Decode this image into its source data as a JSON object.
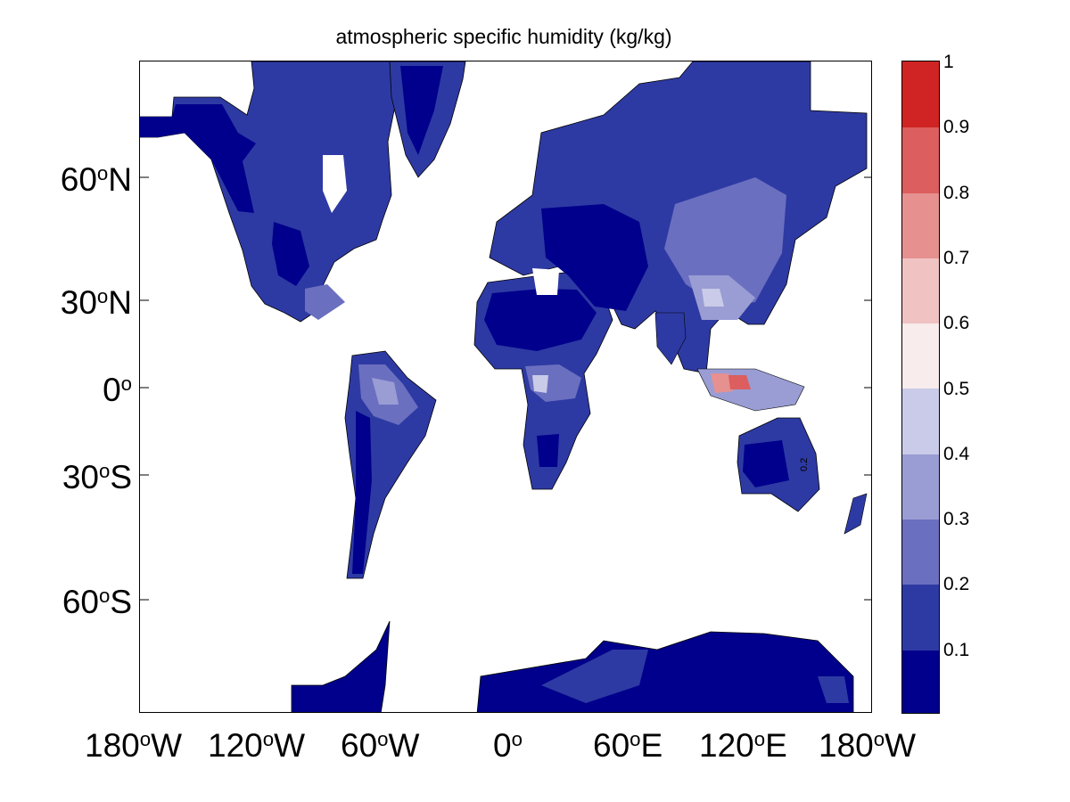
{
  "title": "atmospheric specific humidity (kg/kg)",
  "map": {
    "projection": "mercator",
    "extent": {
      "lon": [
        -180,
        180
      ],
      "lat": [
        -80,
        80
      ]
    },
    "land_color_default": "#2e3aa3",
    "ocean_color": "#ffffff",
    "missing_color": "#ffffff",
    "coastline_color": "#000000",
    "contour_label": "0.2"
  },
  "axes": {
    "y_ticks": [
      {
        "lat": 60,
        "num": "60",
        "hem": "N"
      },
      {
        "lat": 30,
        "num": "30",
        "hem": "N"
      },
      {
        "lat": 0,
        "num": "0",
        "hem": ""
      },
      {
        "lat": -30,
        "num": "30",
        "hem": "S"
      },
      {
        "lat": -60,
        "num": "60",
        "hem": "S"
      }
    ],
    "x_ticks": [
      {
        "lon": -180,
        "num": "180",
        "hem": "W"
      },
      {
        "lon": -120,
        "num": "120",
        "hem": "W"
      },
      {
        "lon": -60,
        "num": "60",
        "hem": "W"
      },
      {
        "lon": 0,
        "num": "0",
        "hem": ""
      },
      {
        "lon": 60,
        "num": "60",
        "hem": "E"
      },
      {
        "lon": 120,
        "num": "120",
        "hem": "E"
      },
      {
        "lon": 180,
        "num": "180",
        "hem": "W"
      }
    ]
  },
  "colorbar": {
    "range": [
      0,
      1
    ],
    "bands": [
      {
        "from": 0.0,
        "to": 0.1,
        "color": "#00008c"
      },
      {
        "from": 0.1,
        "to": 0.2,
        "color": "#2e3aa3"
      },
      {
        "from": 0.2,
        "to": 0.3,
        "color": "#6b6fc0"
      },
      {
        "from": 0.3,
        "to": 0.4,
        "color": "#9a9dd4"
      },
      {
        "from": 0.4,
        "to": 0.5,
        "color": "#c9cbe8"
      },
      {
        "from": 0.5,
        "to": 0.6,
        "color": "#f8ecec"
      },
      {
        "from": 0.6,
        "to": 0.7,
        "color": "#f0c2c2"
      },
      {
        "from": 0.7,
        "to": 0.8,
        "color": "#e69090"
      },
      {
        "from": 0.8,
        "to": 0.9,
        "color": "#dc5e5e"
      },
      {
        "from": 0.9,
        "to": 1.0,
        "color": "#d02424"
      }
    ],
    "tick_labels": [
      "0.1",
      "0.2",
      "0.3",
      "0.4",
      "0.5",
      "0.6",
      "0.7",
      "0.8",
      "0.9",
      "1"
    ]
  }
}
